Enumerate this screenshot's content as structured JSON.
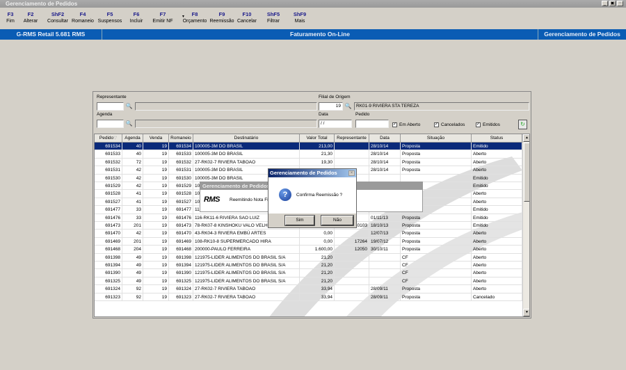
{
  "window": {
    "title": "Gerenciamento de Pedidos",
    "controls": [
      "_",
      "▣",
      "×"
    ]
  },
  "toolbar": [
    {
      "key": "F3",
      "label": "Fim"
    },
    {
      "key": "F2",
      "label": "Alterar"
    },
    {
      "key": "ShF2",
      "label": "Consultar"
    },
    {
      "key": "F4",
      "label": "Romaneio"
    },
    {
      "key": "F5",
      "label": "Suspensos"
    },
    {
      "key": "F6",
      "label": "Incluir"
    },
    {
      "key": "F7",
      "label": "Emitir NF"
    },
    {
      "key": "F8",
      "label": "Orçamento"
    },
    {
      "key": "F9",
      "label": "Reemissão"
    },
    {
      "key": "F10",
      "label": "Cancelar"
    },
    {
      "key": "ShF5",
      "label": "Filtrar"
    },
    {
      "key": "ShF9",
      "label": "Mais"
    }
  ],
  "statusbar": {
    "app": "G-RMS Retail 5.681 RMS",
    "module": "Faturamento On-Line",
    "screen": "Gerenciamento de Pedidos"
  },
  "filters": {
    "representante_label": "Representante",
    "representante_code": "",
    "representante_name": "",
    "agenda_label": "Agenda",
    "agenda_code": "",
    "agenda_name": "",
    "filial_label": "Filial de Origem",
    "filial_code": "19",
    "filial_name": "RK01-9 RIVIERA STA TEREZA",
    "data_label": "Data",
    "data_value": " / /",
    "pedido_label": "Pedido",
    "pedido_value": "",
    "em_aberto": "Em Aberto",
    "cancelados": "Cancelados",
    "emitidos": "Emitidos",
    "check_mark": "✓"
  },
  "grid": {
    "columns": [
      "Pedido",
      "Agenda",
      "Venda",
      "Romaneio",
      "Destinatário",
      "Valor Total",
      "Representante",
      "Data",
      "Situação",
      "Status"
    ],
    "sort_indicator": "▽",
    "rows": [
      [
        "691534",
        "40",
        "19",
        "691534",
        "100005-3M DO BRASIL",
        "213,00",
        "",
        "28/10/14",
        "Proposta",
        "Emitido"
      ],
      [
        "691533",
        "40",
        "19",
        "691533",
        "100005-3M DO BRASIL",
        "21,30",
        "",
        "28/10/14",
        "Proposta",
        "Aberto"
      ],
      [
        "691532",
        "72",
        "19",
        "691532",
        "27-RK02-7 RIVIERA TABOAO",
        "19,30",
        "",
        "28/10/14",
        "Proposta",
        "Aberto"
      ],
      [
        "691531",
        "42",
        "19",
        "691531",
        "100005-3M DO BRASIL",
        "",
        "",
        "28/10/14",
        "Proposta",
        "Aberto"
      ],
      [
        "691530",
        "42",
        "19",
        "691530",
        "100005-3M DO BRASIL",
        "",
        "",
        "",
        "",
        "Emitido"
      ],
      [
        "691529",
        "42",
        "19",
        "691529",
        "10",
        "",
        "",
        "",
        "",
        "Emitido"
      ],
      [
        "691528",
        "41",
        "19",
        "691528",
        "10",
        "",
        "",
        "",
        "",
        "Aberto"
      ],
      [
        "691527",
        "41",
        "19",
        "691527",
        "10",
        "",
        "",
        "",
        "",
        "Aberto"
      ],
      [
        "691477",
        "33",
        "19",
        "691477",
        "116-RK11-6 RIVIERA SAO LUIZ",
        "",
        "",
        "01/11/13",
        "Proposta",
        "Emitido"
      ],
      [
        "691476",
        "33",
        "19",
        "691476",
        "116-RK11-6 RIVIERA SAO LUIZ",
        "",
        "",
        "01/11/13",
        "Proposta",
        "Emitido"
      ],
      [
        "691473",
        "201",
        "19",
        "691473",
        "78-RK07-8 KINSHOKU VALO VELHO",
        "633,00",
        "10103",
        "18/10/13",
        "Proposta",
        "Emitido"
      ],
      [
        "691470",
        "42",
        "19",
        "691470",
        "43-RK04-3 RIVIERA EMBÚ ARTES",
        "0,00",
        "",
        "12/07/13",
        "Proposta",
        "Aberto"
      ],
      [
        "691469",
        "201",
        "19",
        "691469",
        "108-RK10-8 SUPERMERCADO HIRA",
        "0,00",
        "17264",
        "19/07/12",
        "Proposta",
        "Aberto"
      ],
      [
        "691468",
        "204",
        "19",
        "691468",
        "200000-PAULO FERREIRA",
        "1.600,00",
        "12050",
        "30/10/11",
        "Proposta",
        "Aberto"
      ],
      [
        "691398",
        "49",
        "19",
        "691398",
        "121975-LIDER ALIMENTOS DO BRASIL S/A",
        "21,20",
        "",
        "",
        "CF",
        "Aberto"
      ],
      [
        "691394",
        "49",
        "19",
        "691394",
        "121975-LIDER ALIMENTOS DO BRASIL S/A",
        "21,20",
        "",
        "",
        "CF",
        "Aberto"
      ],
      [
        "691390",
        "49",
        "19",
        "691390",
        "121975-LIDER ALIMENTOS DO BRASIL S/A",
        "21,20",
        "",
        "",
        "CF",
        "Aberto"
      ],
      [
        "691325",
        "49",
        "19",
        "691325",
        "121975-LIDER ALIMENTOS DO BRASIL S/A",
        "21,20",
        "",
        "",
        "CF",
        "Aberto"
      ],
      [
        "691324",
        "92",
        "19",
        "691324",
        "27-RK02-7 RIVIERA TABOAO",
        "33,94",
        "",
        "28/09/11",
        "Proposta",
        "Aberto"
      ],
      [
        "691323",
        "92",
        "19",
        "691323",
        "27-RK02-7 RIVIERA TABOAO",
        "33,94",
        "",
        "28/09/11",
        "Proposta",
        "Cancelado"
      ]
    ],
    "selected_row": 0
  },
  "progress_dialog": {
    "title": "Gerenciamento de Pedidos",
    "logo": "RMS",
    "message": "Reemitindo Nota Fi"
  },
  "confirm_dialog": {
    "title": "Gerenciamento de Pedidos",
    "message": "Confirma Reemissão ?",
    "yes": "Sim",
    "no": "Não",
    "close": "×",
    "icon": "question-icon"
  },
  "colors": {
    "accent": "#0a5cb4",
    "selection": "#0a2a7a"
  }
}
